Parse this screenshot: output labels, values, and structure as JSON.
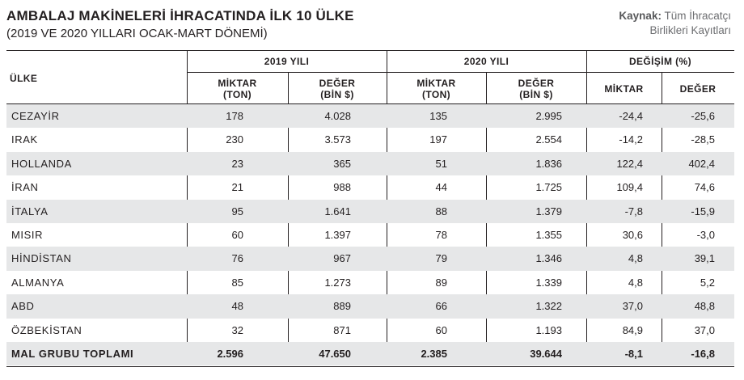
{
  "header": {
    "title": "AMBALAJ MAKİNELERİ İHRACATINDA İLK 10 ÜLKE",
    "subtitle": "(2019 VE 2020 YILLARI OCAK-MART DÖNEMİ)",
    "source_label": "Kaynak:",
    "source_text_1": "Tüm İhracatçı",
    "source_text_2": "Birlikleri Kayıtları"
  },
  "columns": {
    "country": "ÜLKE",
    "group_2019": "2019 YILI",
    "group_2020": "2020 YILI",
    "group_change": "DEĞİŞİM (%)",
    "qty_line1": "MİKTAR",
    "qty_line2": "(TON)",
    "val_line1": "DEĞER",
    "val_line2": "(BİN $)",
    "chg_qty": "MİKTAR",
    "chg_val": "DEĞER"
  },
  "rows": [
    {
      "country": "CEZAYİR",
      "q2019": "178",
      "v2019": "4.028",
      "q2020": "135",
      "v2020": "2.995",
      "cq": "-24,4",
      "cv": "-25,6"
    },
    {
      "country": "IRAK",
      "q2019": "230",
      "v2019": "3.573",
      "q2020": "197",
      "v2020": "2.554",
      "cq": "-14,2",
      "cv": "-28,5"
    },
    {
      "country": "HOLLANDA",
      "q2019": "23",
      "v2019": "365",
      "q2020": "51",
      "v2020": "1.836",
      "cq": "122,4",
      "cv": "402,4"
    },
    {
      "country": "İRAN",
      "q2019": "21",
      "v2019": "988",
      "q2020": "44",
      "v2020": "1.725",
      "cq": "109,4",
      "cv": "74,6"
    },
    {
      "country": "İTALYA",
      "q2019": "95",
      "v2019": "1.641",
      "q2020": "88",
      "v2020": "1.379",
      "cq": "-7,8",
      "cv": "-15,9"
    },
    {
      "country": "MISIR",
      "q2019": "60",
      "v2019": "1.397",
      "q2020": "78",
      "v2020": "1.355",
      "cq": "30,6",
      "cv": "-3,0"
    },
    {
      "country": "HİNDİSTAN",
      "q2019": "76",
      "v2019": "967",
      "q2020": "79",
      "v2020": "1.346",
      "cq": "4,8",
      "cv": "39,1"
    },
    {
      "country": "ALMANYA",
      "q2019": "85",
      "v2019": "1.273",
      "q2020": "89",
      "v2020": "1.339",
      "cq": "4,8",
      "cv": "5,2"
    },
    {
      "country": "ABD",
      "q2019": "48",
      "v2019": "889",
      "q2020": "66",
      "v2020": "1.322",
      "cq": "37,0",
      "cv": "48,8"
    },
    {
      "country": "ÖZBEKİSTAN",
      "q2019": "32",
      "v2019": "871",
      "q2020": "60",
      "v2020": "1.193",
      "cq": "84,9",
      "cv": "37,0"
    }
  ],
  "total": {
    "country": "MAL GRUBU TOPLAMI",
    "q2019": "2.596",
    "v2019": "47.650",
    "q2020": "2.385",
    "v2020": "39.644",
    "cq": "-8,1",
    "cv": "-16,8"
  }
}
